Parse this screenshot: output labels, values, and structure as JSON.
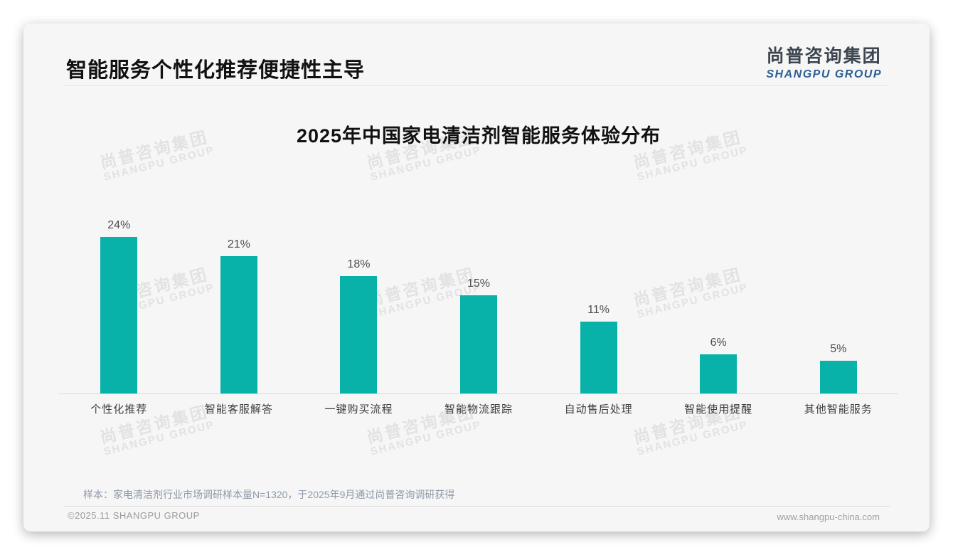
{
  "page": {
    "title": "智能服务个性化推荐便捷性主导",
    "logo": {
      "zh": "尚普咨询集团",
      "en": "SHANGPU GROUP"
    },
    "watermark": {
      "zh": "尚普咨询集团",
      "en": "SHANGPU GROUP"
    },
    "note": "样本：家电清洁剂行业市场调研样本量N=1320，于2025年9月通过尚普咨询调研获得",
    "footer": {
      "left": "©2025.11 SHANGPU GROUP",
      "right": "www.shangpu-china.com"
    }
  },
  "colors": {
    "bar": "#09b2a9",
    "logo_blue": "#2d5f94",
    "logo_dark": "#3d4650",
    "watermark": "#e2e2e2"
  },
  "chart_data": {
    "type": "bar",
    "title": "2025年中国家电清洁剂智能服务体验分布",
    "categories": [
      "个性化推荐",
      "智能客服解答",
      "一键购买流程",
      "智能物流跟踪",
      "自动售后处理",
      "智能使用提醒",
      "其他智能服务"
    ],
    "values": [
      24,
      21,
      18,
      15,
      11,
      6,
      5
    ],
    "value_labels": [
      "24%",
      "21%",
      "18%",
      "15%",
      "11%",
      "6%",
      "5%"
    ],
    "unit": "%",
    "xlabel": "",
    "ylabel": "",
    "ylim": [
      0,
      26
    ],
    "grid": false,
    "legend": "none",
    "bar_color": "#09b2a9"
  }
}
